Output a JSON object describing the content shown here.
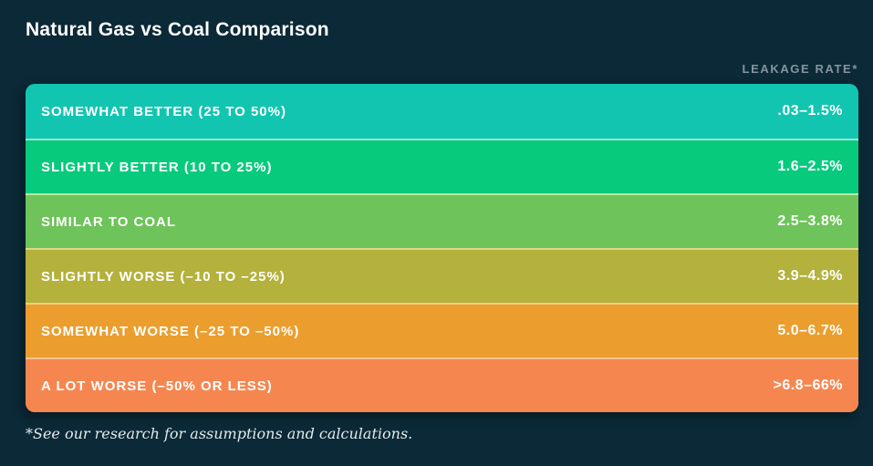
{
  "title": "Natural Gas vs Coal Comparison",
  "column_header": "LEAKAGE RATE*",
  "footnote": "*See our research for assumptions and calculations.",
  "colors": {
    "page_background": "#0b2936",
    "title_text": "#fdfdfd",
    "column_header_text": "#8494a0",
    "row_text": "#ffffff",
    "footnote_text": "#e3eaee"
  },
  "chart_data": {
    "type": "table",
    "title": "Natural Gas vs Coal Comparison",
    "value_column_header": "LEAKAGE RATE*",
    "rows": [
      {
        "label": "SOMEWHAT BETTER (25 TO 50%)",
        "value": ".03–1.5%",
        "color": "#12c5b1",
        "divider_color": "#a5ecd4"
      },
      {
        "label": "SLIGHTLY BETTER (10 TO 25%)",
        "value": "1.6–2.5%",
        "color": "#07ca7d",
        "divider_color": "#9dead0"
      },
      {
        "label": "SIMILAR TO COAL",
        "value": "2.5–3.8%",
        "color": "#6ec35a",
        "divider_color": "#bde79f"
      },
      {
        "label": "SLIGHTLY WORSE (–10 TO –25%)",
        "value": "3.9–4.9%",
        "color": "#b4b13c",
        "divider_color": "#ddd98c"
      },
      {
        "label": "SOMEWHAT WORSE (–25 TO –50%)",
        "value": "5.0–6.7%",
        "color": "#eb9e2e",
        "divider_color": "#f6c985"
      },
      {
        "label": "A LOT WORSE (–50% OR LESS)",
        "value": ">6.8–66%",
        "color": "#f68650",
        "divider_color": "#fbc09d"
      }
    ]
  }
}
